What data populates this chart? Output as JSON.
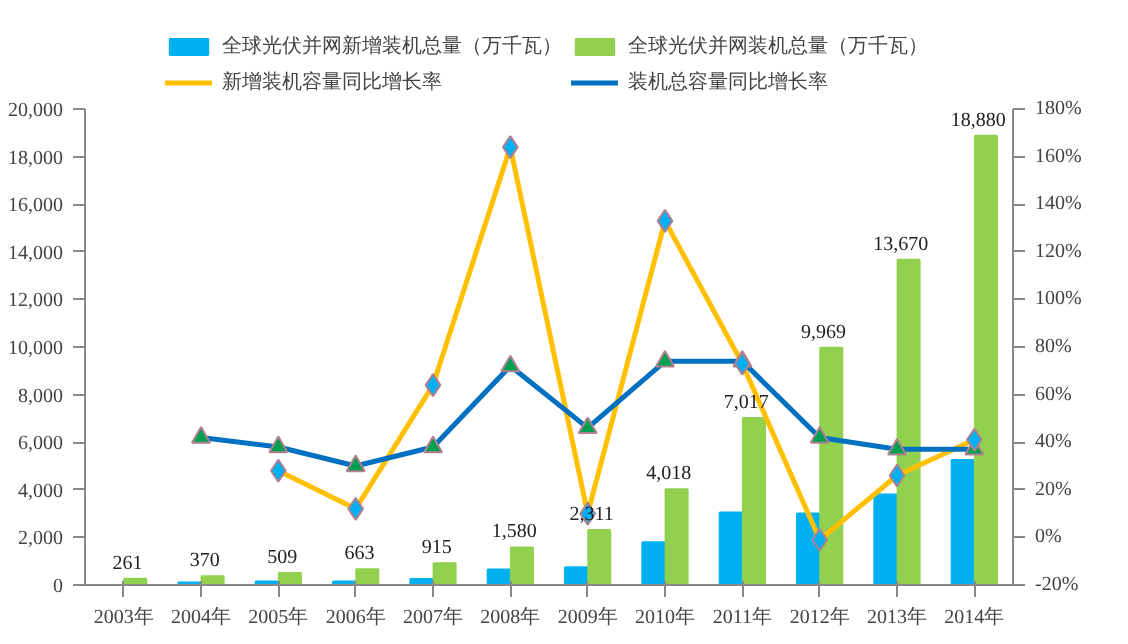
{
  "chart_data": {
    "type": "bar",
    "categories": [
      "2003年",
      "2004年",
      "2005年",
      "2006年",
      "2007年",
      "2008年",
      "2009年",
      "2010年",
      "2011年",
      "2012年",
      "2013年",
      "2014年"
    ],
    "series": [
      {
        "name": "全球光伏并网新增装机总量（万千瓦）",
        "color": "#00b0f0",
        "values": [
          null,
          100,
          150,
          150,
          250,
          650,
          750,
          1800,
          3050,
          3000,
          3800,
          5250
        ]
      },
      {
        "name": "全球光伏并网装机总量（万千瓦）",
        "color": "#92d050",
        "values": [
          261,
          370,
          509,
          663,
          915,
          1580,
          2311,
          4018,
          7017,
          9969,
          13670,
          18880
        ],
        "value_labels": [
          "261",
          "370",
          "509",
          "663",
          "915",
          "1,580",
          "2,311",
          "4,018",
          "7,017",
          "9,969",
          "13,670",
          "18,880"
        ]
      },
      {
        "name": "新增装机容量同比增长率",
        "type": "line",
        "axis": "y2",
        "marker": "diamond",
        "color": "#ffc000",
        "values": [
          null,
          null,
          28,
          12,
          64,
          164,
          10,
          133,
          73,
          -1,
          26,
          41
        ]
      },
      {
        "name": "装机总容量同比增长率",
        "type": "line",
        "axis": "y2",
        "marker": "triangle",
        "color": "#0070c0",
        "values": [
          null,
          42,
          38,
          30,
          38,
          72,
          46,
          74,
          74,
          42,
          37,
          37
        ]
      }
    ],
    "ylim": [
      0,
      20000
    ],
    "yticks": [
      0,
      {
        "value": 2000,
        "label": "2,000"
      },
      {
        "value": 4000,
        "label": "4,000"
      },
      {
        "value": 6000,
        "label": "6,000"
      },
      {
        "value": 8000,
        "label": "8,000"
      },
      {
        "value": 10000,
        "label": "10,000"
      },
      {
        "value": 12000,
        "label": "12,000"
      },
      {
        "value": 14000,
        "label": "14,000"
      },
      {
        "value": 16000,
        "label": "16,000"
      },
      {
        "value": 18000,
        "label": "18,000"
      },
      {
        "value": 20000,
        "label": "20,000"
      }
    ],
    "y2lim": [
      -20,
      180
    ],
    "y2ticks": [
      {
        "value": -20,
        "label": "-20%"
      },
      {
        "value": 0,
        "label": "0%"
      },
      {
        "value": 20,
        "label": "20%"
      },
      {
        "value": 40,
        "label": "40%"
      },
      {
        "value": 60,
        "label": "60%"
      },
      {
        "value": 80,
        "label": "80%"
      },
      {
        "value": 100,
        "label": "100%"
      },
      {
        "value": 120,
        "label": "120%"
      },
      {
        "value": 140,
        "label": "140%"
      },
      {
        "value": 160,
        "label": "160%"
      },
      {
        "value": 180,
        "label": "180%"
      }
    ],
    "legend": "top",
    "grid": false
  }
}
